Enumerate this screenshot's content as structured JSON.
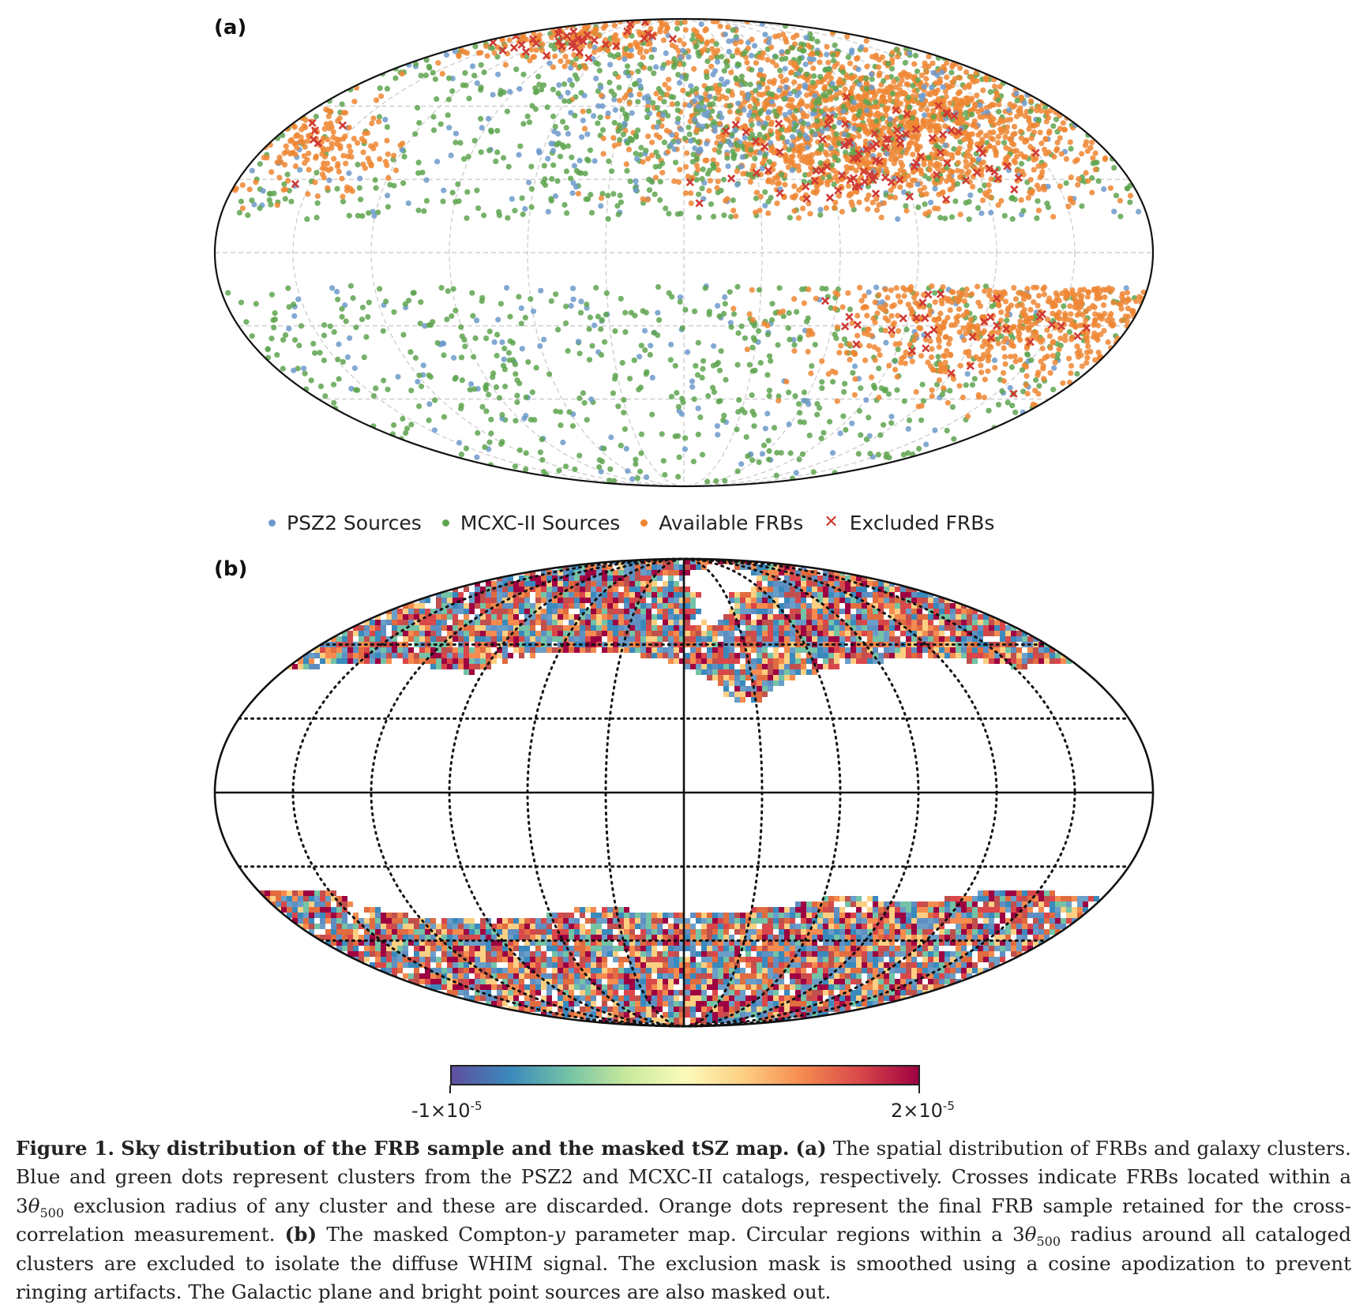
{
  "panel_a": {
    "label": "(a)",
    "legend": [
      {
        "label": "PSZ2 Sources",
        "color": "#6d9acb",
        "marker": "dot"
      },
      {
        "label": "MCXC-II Sources",
        "color": "#5ea44f",
        "marker": "dot"
      },
      {
        "label": "Available FRBs",
        "color": "#ef8633",
        "marker": "dot"
      },
      {
        "label": "Excluded FRBs",
        "color": "#d03a34",
        "marker": "cross"
      }
    ]
  },
  "panel_b": {
    "label": "(b)",
    "colorbar": {
      "min_label": "-1×10",
      "min_exp": "-5",
      "max_label": "2×10",
      "max_exp": "-5",
      "colormap": "Spectral_r"
    }
  },
  "caption": {
    "fig_label": "Figure 1.",
    "title": "Sky distribution of the FRB sample and the masked tSZ map.",
    "a_tag": "(a)",
    "a_text_1": "The spatial distribution of FRBs and galaxy clusters. Blue and green dots represent clusters from the PSZ2 and MCXC-II catalogs, respectively. Crosses indicate FRBs located within a 3",
    "theta": "θ",
    "theta_sub": "500",
    "a_text_2": "exclusion radius of any cluster and these are discarded. Orange dots represent the final FRB sample retained for the cross-correlation measurement.",
    "b_tag": "(b)",
    "b_text_1": "The masked Compton-",
    "y_symbol": "y",
    "b_text_2": "parameter map. Circular regions within a 3",
    "b_text_3": "radius around all cataloged clusters are excluded to isolate the diffuse WHIM signal. The exclusion mask is smoothed using a cosine apodization to prevent ringing artifacts. The Galactic plane and bright point sources are also masked out."
  }
}
